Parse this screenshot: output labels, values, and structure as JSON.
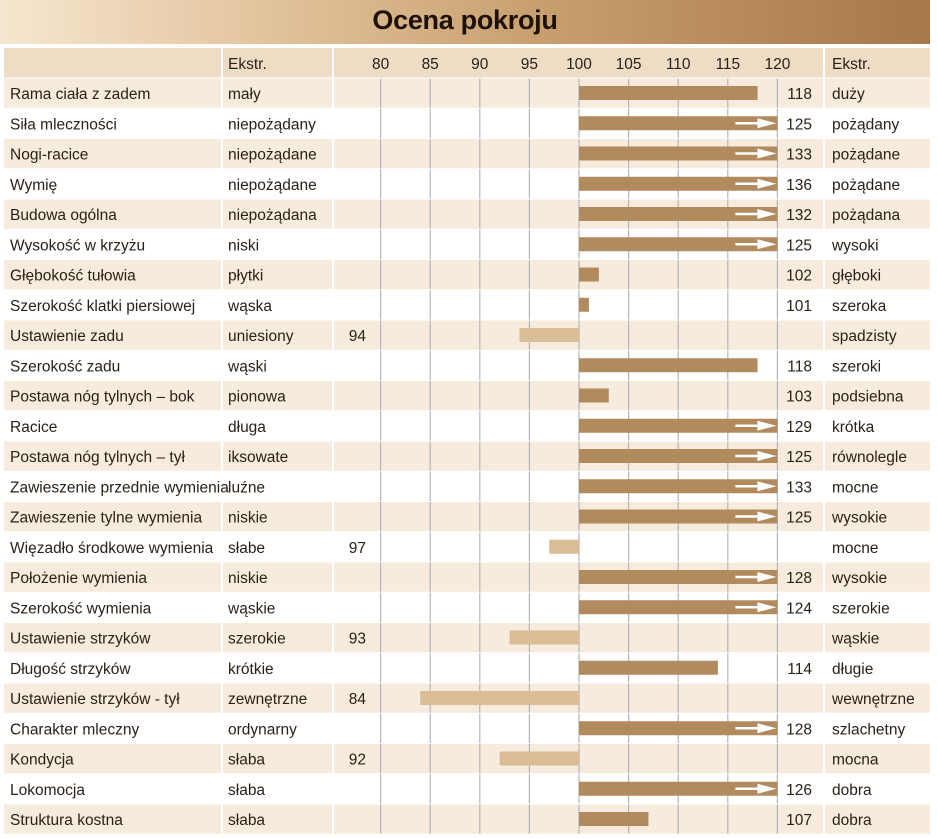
{
  "title": "Ocena pokroju",
  "chart_data": {
    "type": "bar",
    "title": "Ocena pokroju",
    "baseline": 100,
    "xlim": [
      75,
      120
    ],
    "ticks": [
      80,
      85,
      90,
      95,
      100,
      105,
      110,
      115,
      120
    ],
    "header": {
      "left_extreme": "Ekstr.",
      "right_extreme": "Ekstr."
    },
    "colors": {
      "above": "#b18a5e",
      "below": "#d9bd94",
      "row_odd": "#f6ebdc",
      "row_even": "#ffffff",
      "header": "#efdcc4",
      "grid": "#b5b5b5",
      "arrow": "#ffffff"
    },
    "rows": [
      {
        "trait": "Rama ciała z zadem",
        "low": "mały",
        "high": "duży",
        "value": 118
      },
      {
        "trait": "Siła mleczności",
        "low": "niepożądany",
        "high": "pożądany",
        "value": 125
      },
      {
        "trait": "Nogi-racice",
        "low": "niepożądane",
        "high": "pożądane",
        "value": 133
      },
      {
        "trait": "Wymię",
        "low": "niepożądane",
        "high": "pożądane",
        "value": 136
      },
      {
        "trait": "Budowa ogólna",
        "low": "niepożądana",
        "high": "pożądana",
        "value": 132
      },
      {
        "trait": "Wysokość w krzyżu",
        "low": "niski",
        "high": "wysoki",
        "value": 125
      },
      {
        "trait": "Głębokość tułowia",
        "low": "płytki",
        "high": "głęboki",
        "value": 102
      },
      {
        "trait": "Szerokość klatki piersiowej",
        "low": "wąska",
        "high": "szeroka",
        "value": 101
      },
      {
        "trait": "Ustawienie zadu",
        "low": "uniesiony",
        "high": "spadzisty",
        "value": 94
      },
      {
        "trait": "Szerokość zadu",
        "low": "wąski",
        "high": "szeroki",
        "value": 118
      },
      {
        "trait": "Postawa nóg tylnych – bok",
        "low": "pionowa",
        "high": "podsiebna",
        "value": 103
      },
      {
        "trait": "Racice",
        "low": "długa",
        "high": "krótka",
        "value": 129
      },
      {
        "trait": "Postawa nóg tylnych – tył",
        "low": "iksowate",
        "high": "równolegle",
        "value": 125
      },
      {
        "trait": "Zawieszenie przednie wymienia",
        "low": "luźne",
        "high": "mocne",
        "value": 133
      },
      {
        "trait": "Zawieszenie tylne wymienia",
        "low": "niskie",
        "high": "wysokie",
        "value": 125
      },
      {
        "trait": "Więzadło środkowe wymienia",
        "low": "słabe",
        "high": "mocne",
        "value": 97
      },
      {
        "trait": "Położenie wymienia",
        "low": "niskie",
        "high": "wysokie",
        "value": 128
      },
      {
        "trait": "Szerokość wymienia",
        "low": "wąskie",
        "high": "szerokie",
        "value": 124
      },
      {
        "trait": "Ustawienie strzyków",
        "low": "szerokie",
        "high": "wąskie",
        "value": 93
      },
      {
        "trait": "Długość strzyków",
        "low": "krótkie",
        "high": "długie",
        "value": 114
      },
      {
        "trait": "Ustawienie strzyków - tył",
        "low": "zewnętrzne",
        "high": "wewnętrzne",
        "value": 84
      },
      {
        "trait": "Charakter mleczny",
        "low": "ordynarny",
        "high": "szlachetny",
        "value": 128
      },
      {
        "trait": "Kondycja",
        "low": "słaba",
        "high": "mocna",
        "value": 92
      },
      {
        "trait": "Lokomocja",
        "low": "słaba",
        "high": "dobra",
        "value": 126
      },
      {
        "trait": "Struktura kostna",
        "low": "słaba",
        "high": "dobra",
        "value": 107
      }
    ]
  }
}
